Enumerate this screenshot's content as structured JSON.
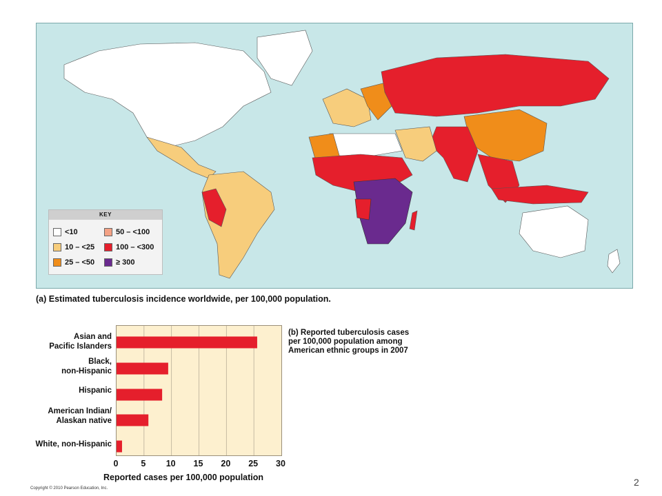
{
  "map": {
    "key_title": "KEY",
    "key_items": [
      {
        "label": "<10",
        "color": "#ffffff"
      },
      {
        "label": "50 – <100",
        "color": "#f4a285"
      },
      {
        "label": "10 – <25",
        "color": "#f7cd7c"
      },
      {
        "label": "100 – <300",
        "color": "#e51f2c"
      },
      {
        "label": "25 – <50",
        "color": "#f08d1a"
      },
      {
        "label": "≥ 300",
        "color": "#6a2a8e"
      }
    ],
    "caption_tag": "(a)",
    "caption_text": "Estimated tuberculosis incidence worldwide, per 100,000 population.",
    "ocean_color": "#c8e7e8"
  },
  "chart_data": {
    "type": "bar",
    "orientation": "horizontal",
    "categories": [
      "Asian and\nPacific Islanders",
      "Black,\nnon-Hispanic",
      "Hispanic",
      "American Indian/\nAlaskan native",
      "White, non-Hispanic"
    ],
    "values": [
      25.6,
      9.4,
      8.3,
      5.8,
      1.0
    ],
    "xlim": [
      0,
      30
    ],
    "xticks": [
      "0",
      "5",
      "10",
      "15",
      "20",
      "25",
      "30"
    ],
    "xlabel": "Reported cases per 100,000 population",
    "caption_tag": "(b)",
    "caption_text": "Reported tuberculosis cases per 100,000 population among American ethnic groups in 2007",
    "bar_color": "#e51f2c",
    "background": "#fdf0cf",
    "grid": true
  },
  "footer": {
    "copyright": "Copyright © 2010 Pearson Education, Inc.",
    "page_number": "2"
  }
}
